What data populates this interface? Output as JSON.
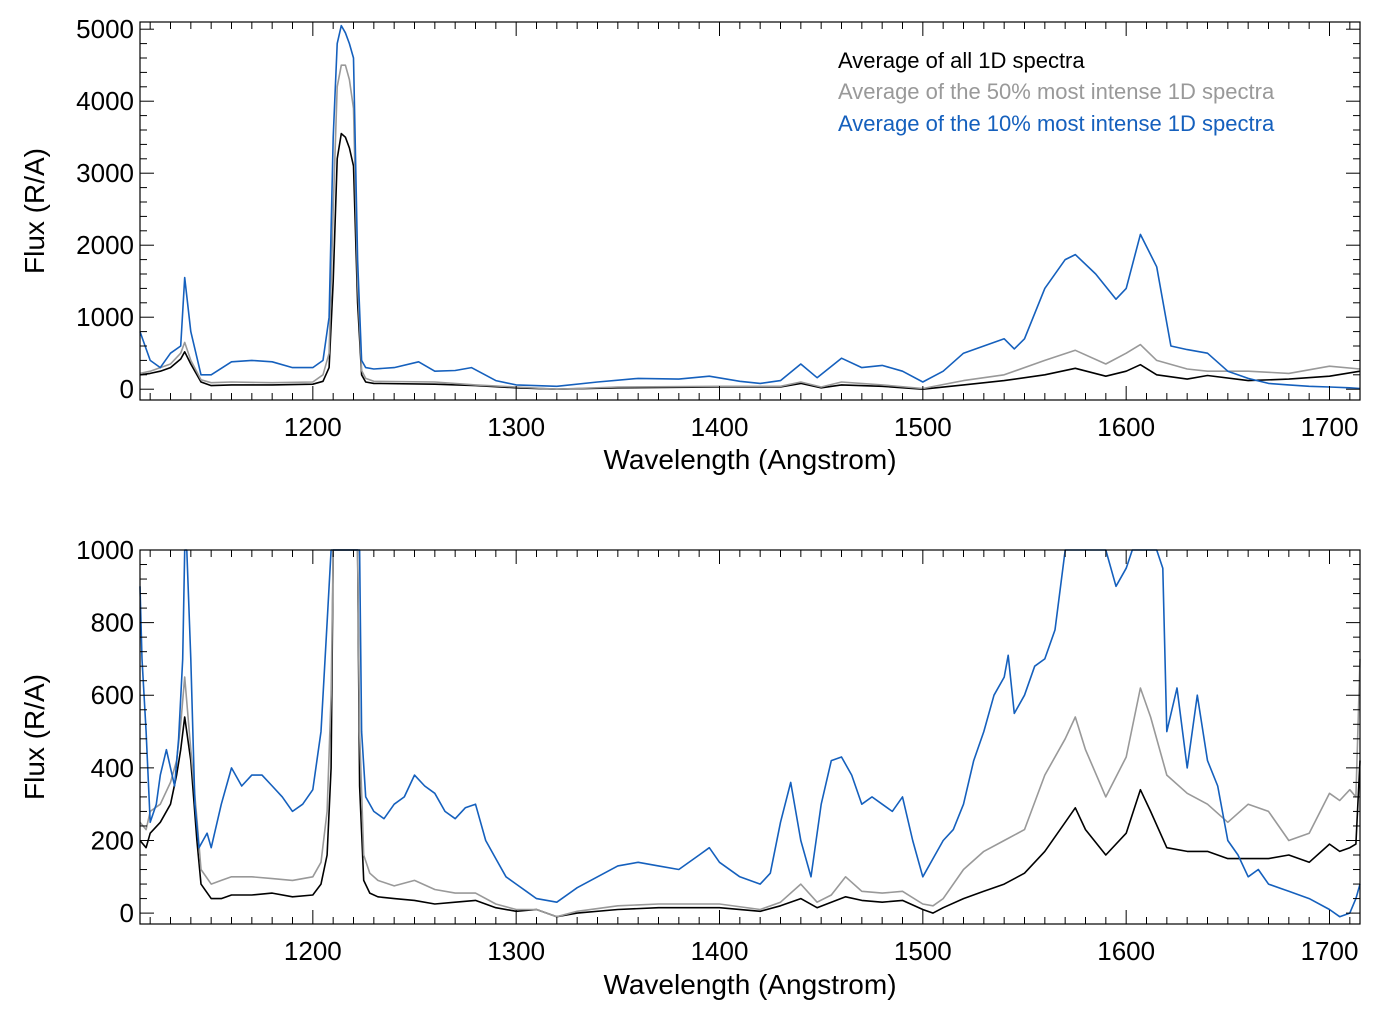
{
  "colors": {
    "all": "#000000",
    "top50": "#999999",
    "top10": "#1560bd"
  },
  "legend": {
    "all": "Average of all 1D spectra",
    "top50": "Average of the 50% most intense 1D spectra",
    "top10": "Average of the 10% most intense 1D spectra"
  },
  "chart_data": [
    {
      "type": "line",
      "xlabel": "Wavelength (Angstrom)",
      "ylabel": "Flux (R/A)",
      "xlim": [
        1115,
        1715
      ],
      "ylim": [
        -150,
        5100
      ],
      "xticks": [
        1200,
        1300,
        1400,
        1500,
        1600,
        1700
      ],
      "yticks": [
        0,
        1000,
        2000,
        3000,
        4000,
        5000
      ],
      "legend_position": "top-right",
      "series": [
        {
          "name": "Average of all 1D spectra",
          "color": "#000000",
          "x": [
            1115,
            1120,
            1125,
            1130,
            1135,
            1137,
            1140,
            1145,
            1150,
            1160,
            1180,
            1200,
            1205,
            1208,
            1210,
            1212,
            1214,
            1216,
            1218,
            1220,
            1222,
            1224,
            1226,
            1230,
            1260,
            1280,
            1300,
            1320,
            1350,
            1400,
            1430,
            1440,
            1450,
            1460,
            1480,
            1500,
            1520,
            1540,
            1560,
            1575,
            1590,
            1600,
            1607,
            1615,
            1630,
            1640,
            1660,
            1680,
            1700,
            1715
          ],
          "y": [
            200,
            220,
            250,
            300,
            420,
            520,
            350,
            100,
            50,
            60,
            60,
            70,
            110,
            300,
            1500,
            3200,
            3550,
            3500,
            3350,
            3100,
            1200,
            200,
            100,
            80,
            70,
            50,
            20,
            0,
            20,
            30,
            30,
            80,
            20,
            60,
            40,
            0,
            60,
            120,
            200,
            290,
            180,
            250,
            340,
            200,
            140,
            190,
            120,
            140,
            180,
            250
          ]
        },
        {
          "name": "Average of the 50% most intense 1D spectra",
          "color": "#999999",
          "x": [
            1115,
            1120,
            1125,
            1130,
            1135,
            1137,
            1140,
            1145,
            1150,
            1160,
            1180,
            1200,
            1205,
            1208,
            1210,
            1212,
            1214,
            1216,
            1218,
            1220,
            1222,
            1224,
            1226,
            1230,
            1260,
            1280,
            1300,
            1320,
            1350,
            1400,
            1430,
            1440,
            1450,
            1460,
            1480,
            1500,
            1520,
            1540,
            1560,
            1575,
            1590,
            1600,
            1607,
            1615,
            1630,
            1640,
            1660,
            1680,
            1700,
            1715
          ],
          "y": [
            220,
            250,
            300,
            350,
            500,
            650,
            400,
            130,
            90,
            100,
            90,
            100,
            200,
            500,
            2500,
            4200,
            4500,
            4500,
            4300,
            3900,
            1500,
            260,
            150,
            110,
            100,
            60,
            30,
            0,
            30,
            40,
            40,
            100,
            30,
            100,
            60,
            10,
            120,
            200,
            400,
            540,
            350,
            500,
            620,
            400,
            280,
            250,
            250,
            220,
            320,
            280
          ]
        },
        {
          "name": "Average of the 10% most intense 1D spectra",
          "color": "#1560bd",
          "x": [
            1115,
            1120,
            1125,
            1130,
            1135,
            1137,
            1140,
            1145,
            1150,
            1160,
            1170,
            1180,
            1190,
            1200,
            1205,
            1208,
            1210,
            1212,
            1214,
            1216,
            1218,
            1220,
            1222,
            1224,
            1226,
            1230,
            1240,
            1252,
            1260,
            1270,
            1278,
            1290,
            1300,
            1320,
            1340,
            1360,
            1380,
            1395,
            1410,
            1420,
            1430,
            1440,
            1448,
            1460,
            1470,
            1480,
            1490,
            1500,
            1510,
            1520,
            1530,
            1540,
            1545,
            1550,
            1560,
            1570,
            1575,
            1585,
            1595,
            1600,
            1607,
            1615,
            1622,
            1630,
            1640,
            1650,
            1660,
            1670,
            1680,
            1690,
            1700,
            1710,
            1715
          ],
          "y": [
            800,
            400,
            300,
            500,
            600,
            1550,
            800,
            200,
            200,
            380,
            400,
            380,
            300,
            300,
            400,
            1000,
            3500,
            4800,
            5050,
            4950,
            4800,
            4600,
            1800,
            400,
            300,
            280,
            300,
            380,
            250,
            260,
            300,
            120,
            60,
            40,
            100,
            150,
            140,
            180,
            110,
            80,
            120,
            350,
            160,
            430,
            300,
            330,
            250,
            100,
            250,
            500,
            600,
            700,
            560,
            700,
            1400,
            1800,
            1870,
            1600,
            1250,
            1400,
            2150,
            1700,
            600,
            550,
            500,
            250,
            150,
            80,
            60,
            40,
            30,
            20,
            10
          ]
        }
      ]
    },
    {
      "type": "line",
      "xlabel": "Wavelength (Angstrom)",
      "ylabel": "Flux (R/A)",
      "xlim": [
        1115,
        1715
      ],
      "ylim": [
        -30,
        1000
      ],
      "xticks": [
        1200,
        1300,
        1400,
        1500,
        1600,
        1700
      ],
      "yticks": [
        0,
        200,
        400,
        600,
        800,
        1000
      ],
      "series": [
        {
          "name": "Average of all 1D spectra",
          "color": "#000000",
          "x": [
            1115,
            1118,
            1120,
            1125,
            1130,
            1133,
            1135,
            1137,
            1140,
            1143,
            1145,
            1150,
            1155,
            1160,
            1170,
            1180,
            1190,
            1200,
            1204,
            1207,
            1209,
            1210,
            1212,
            1216,
            1220,
            1222,
            1223,
            1225,
            1228,
            1232,
            1240,
            1250,
            1260,
            1270,
            1280,
            1290,
            1300,
            1310,
            1320,
            1330,
            1350,
            1370,
            1400,
            1420,
            1430,
            1440,
            1448,
            1455,
            1462,
            1470,
            1480,
            1490,
            1500,
            1505,
            1510,
            1520,
            1530,
            1540,
            1550,
            1560,
            1570,
            1575,
            1580,
            1590,
            1600,
            1607,
            1612,
            1620,
            1630,
            1640,
            1650,
            1660,
            1670,
            1680,
            1690,
            1700,
            1705,
            1710,
            1713,
            1715
          ],
          "y": [
            200,
            180,
            220,
            250,
            300,
            380,
            450,
            540,
            420,
            200,
            80,
            40,
            40,
            50,
            50,
            55,
            45,
            50,
            80,
            160,
            400,
            1000,
            1000,
            1000,
            1000,
            1000,
            350,
            90,
            55,
            45,
            40,
            35,
            25,
            30,
            35,
            15,
            5,
            10,
            -10,
            0,
            10,
            15,
            15,
            5,
            20,
            40,
            15,
            30,
            45,
            35,
            30,
            35,
            10,
            0,
            15,
            40,
            60,
            80,
            110,
            170,
            250,
            290,
            230,
            160,
            220,
            340,
            280,
            180,
            170,
            170,
            150,
            150,
            150,
            160,
            140,
            190,
            170,
            180,
            190,
            420
          ]
        },
        {
          "name": "Average of the 50% most intense 1D spectra",
          "color": "#999999",
          "x": [
            1115,
            1118,
            1120,
            1125,
            1130,
            1133,
            1135,
            1137,
            1140,
            1143,
            1145,
            1150,
            1155,
            1160,
            1170,
            1180,
            1190,
            1200,
            1204,
            1207,
            1209,
            1210,
            1212,
            1216,
            1220,
            1222,
            1223,
            1225,
            1228,
            1232,
            1240,
            1250,
            1260,
            1270,
            1280,
            1290,
            1300,
            1310,
            1320,
            1330,
            1350,
            1370,
            1400,
            1420,
            1430,
            1440,
            1448,
            1455,
            1462,
            1470,
            1480,
            1490,
            1500,
            1505,
            1510,
            1520,
            1530,
            1540,
            1550,
            1560,
            1570,
            1575,
            1580,
            1590,
            1600,
            1607,
            1612,
            1620,
            1630,
            1640,
            1650,
            1660,
            1670,
            1680,
            1690,
            1700,
            1705,
            1710,
            1713,
            1715
          ],
          "y": [
            250,
            230,
            280,
            300,
            360,
            420,
            520,
            650,
            450,
            260,
            120,
            80,
            90,
            100,
            100,
            95,
            90,
            100,
            140,
            280,
            600,
            1000,
            1000,
            1000,
            1000,
            1000,
            500,
            160,
            110,
            90,
            75,
            90,
            65,
            55,
            55,
            25,
            10,
            10,
            -10,
            5,
            20,
            25,
            25,
            10,
            30,
            80,
            30,
            50,
            100,
            60,
            55,
            60,
            25,
            20,
            40,
            120,
            170,
            200,
            230,
            380,
            480,
            540,
            450,
            320,
            430,
            620,
            540,
            380,
            330,
            300,
            250,
            300,
            280,
            200,
            220,
            330,
            310,
            340,
            320,
            700
          ]
        },
        {
          "name": "Average of the 10% most intense 1D spectra",
          "color": "#1560bd",
          "x": [
            1115,
            1116,
            1118,
            1120,
            1123,
            1125,
            1128,
            1130,
            1132,
            1134,
            1136,
            1137,
            1138,
            1140,
            1142,
            1144,
            1146,
            1148,
            1150,
            1155,
            1160,
            1165,
            1170,
            1175,
            1180,
            1185,
            1190,
            1195,
            1200,
            1204,
            1207,
            1209,
            1210,
            1212,
            1216,
            1220,
            1222,
            1223,
            1224,
            1226,
            1230,
            1235,
            1240,
            1245,
            1250,
            1255,
            1260,
            1265,
            1270,
            1275,
            1280,
            1285,
            1290,
            1295,
            1300,
            1305,
            1310,
            1320,
            1330,
            1340,
            1350,
            1360,
            1370,
            1380,
            1390,
            1395,
            1400,
            1410,
            1420,
            1425,
            1430,
            1435,
            1440,
            1445,
            1450,
            1455,
            1460,
            1465,
            1470,
            1475,
            1480,
            1485,
            1490,
            1495,
            1500,
            1505,
            1510,
            1515,
            1520,
            1525,
            1530,
            1535,
            1540,
            1542,
            1545,
            1550,
            1555,
            1560,
            1565,
            1570,
            1575,
            1580,
            1585,
            1590,
            1595,
            1600,
            1603,
            1607,
            1612,
            1615,
            1618,
            1620,
            1625,
            1630,
            1635,
            1640,
            1645,
            1650,
            1655,
            1660,
            1665,
            1670,
            1680,
            1690,
            1700,
            1705,
            1710,
            1713,
            1715
          ],
          "y": [
            900,
            700,
            500,
            250,
            300,
            380,
            450,
            400,
            350,
            480,
            700,
            1000,
            1000,
            700,
            300,
            180,
            200,
            220,
            180,
            300,
            400,
            350,
            380,
            380,
            350,
            320,
            280,
            300,
            340,
            500,
            800,
            1000,
            1000,
            1000,
            1000,
            1000,
            1000,
            1000,
            500,
            320,
            280,
            260,
            300,
            320,
            380,
            350,
            330,
            280,
            260,
            290,
            300,
            200,
            150,
            100,
            80,
            60,
            40,
            30,
            70,
            100,
            130,
            140,
            130,
            120,
            160,
            180,
            140,
            100,
            80,
            110,
            250,
            360,
            200,
            100,
            300,
            420,
            430,
            380,
            300,
            320,
            300,
            280,
            320,
            200,
            100,
            150,
            200,
            230,
            300,
            420,
            500,
            600,
            650,
            710,
            550,
            600,
            680,
            700,
            780,
            1000,
            1000,
            1000,
            1000,
            1000,
            900,
            950,
            1000,
            1000,
            1000,
            1000,
            950,
            500,
            620,
            400,
            600,
            420,
            350,
            200,
            160,
            100,
            120,
            80,
            60,
            40,
            10,
            -10,
            0,
            40,
            80
          ]
        }
      ]
    }
  ]
}
